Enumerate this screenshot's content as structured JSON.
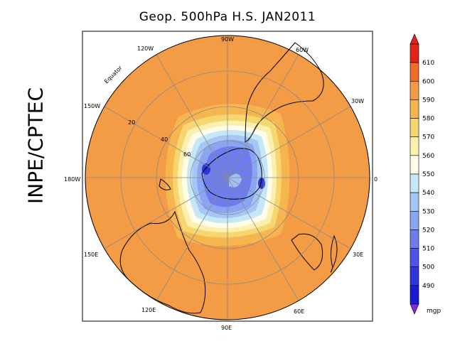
{
  "title": "Geop. 500hPa H.S. JAN2011",
  "side_label": "INPE/CPTEC",
  "map": {
    "projection": "polar stereographic, south pole",
    "longitude_labels": [
      "90W",
      "60W",
      "30W",
      "0",
      "30E",
      "60E",
      "90E",
      "120E",
      "150E",
      "180W",
      "150W",
      "120W"
    ],
    "latitude_labels": [
      "Equator",
      "20",
      "40",
      "60"
    ]
  },
  "legend": {
    "unit": "mgp",
    "levels": [
      "610",
      "600",
      "590",
      "580",
      "570",
      "560",
      "550",
      "540",
      "530",
      "520",
      "510",
      "500",
      "490"
    ],
    "colors": [
      "#e2231a",
      "#f26a2a",
      "#f39b45",
      "#f7b54f",
      "#f6d671",
      "#fbf0ad",
      "#fffde8",
      "#c6e7f7",
      "#a6c7f5",
      "#8aa5f1",
      "#6f7ceb",
      "#4e55e6",
      "#2e35d9",
      "#1a1ad0"
    ]
  }
}
